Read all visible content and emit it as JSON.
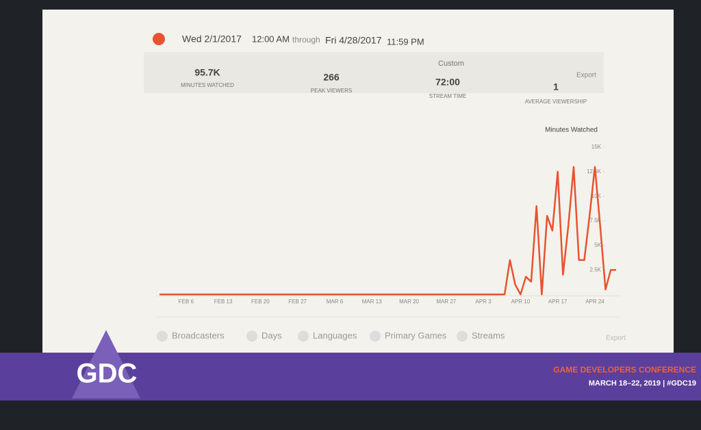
{
  "header": {
    "start_date": "Wed 2/1/2017",
    "start_time": "12:00 AM",
    "through": "through",
    "end_date": "Fri 4/28/2017",
    "end_time": "11:59 PM",
    "range": "Custom",
    "export": "Export"
  },
  "stats": [
    {
      "value": "95.7K",
      "label": "MINUTES WATCHED"
    },
    {
      "value": "266",
      "label": "PEAK VIEWERS"
    },
    {
      "value": "72:00",
      "label": "STREAM TIME"
    },
    {
      "value": "1",
      "label": "AVERAGE VIEWERSHIP"
    }
  ],
  "metric_select": "Minutes Watched",
  "chart_data": {
    "type": "line",
    "categories": [
      null,
      null,
      null,
      null,
      null,
      "FEB 6",
      null,
      null,
      null,
      null,
      null,
      null,
      "FEB 13",
      null,
      null,
      null,
      null,
      null,
      null,
      "FEB 20",
      null,
      null,
      null,
      null,
      null,
      null,
      "FEB 27",
      null,
      null,
      null,
      null,
      null,
      null,
      "MAR 6",
      null,
      null,
      null,
      null,
      null,
      null,
      "MAR 13",
      null,
      null,
      null,
      null,
      null,
      null,
      "MAR 20",
      null,
      null,
      null,
      null,
      null,
      null,
      "MAR 27",
      null,
      null,
      null,
      null,
      null,
      null,
      "APR 3",
      null,
      null,
      null,
      null,
      null,
      null,
      "APR 10",
      null,
      null,
      null,
      null,
      null,
      null,
      "APR 17",
      null,
      null,
      null,
      null,
      null,
      null,
      "APR 24",
      null,
      null,
      null,
      null
    ],
    "series": [
      {
        "name": "Minutes Watched",
        "color": "#e8522f",
        "values": [
          0,
          0,
          0,
          0,
          0,
          0,
          0,
          0,
          0,
          0,
          0,
          0,
          0,
          0,
          0,
          0,
          0,
          0,
          0,
          0,
          0,
          0,
          0,
          0,
          0,
          0,
          0,
          0,
          0,
          0,
          0,
          0,
          0,
          0,
          0,
          0,
          0,
          0,
          0,
          0,
          0,
          0,
          0,
          0,
          0,
          0,
          0,
          0,
          0,
          0,
          0,
          0,
          0,
          0,
          0,
          0,
          0,
          0,
          0,
          0,
          0,
          0,
          0,
          0,
          0,
          0,
          3500,
          1000,
          0,
          1800,
          1300,
          9000,
          0,
          8000,
          6500,
          12500,
          2000,
          7000,
          13000,
          3500,
          3500,
          8000,
          13000,
          7000,
          500,
          2500,
          2500
        ]
      }
    ],
    "ylim": [
      0,
      15000
    ],
    "yticks": [
      {
        "value": 2500,
        "label": "2.5K"
      },
      {
        "value": 5000,
        "label": "5K"
      },
      {
        "value": 7500,
        "label": "7.5K"
      },
      {
        "value": 10000,
        "label": "10K"
      },
      {
        "value": 12500,
        "label": "12.5K"
      },
      {
        "value": 15000,
        "label": "15K"
      }
    ],
    "grid": false
  },
  "tabs": [
    "Broadcasters",
    "Days",
    "Languages",
    "Primary Games",
    "Streams"
  ],
  "tabs_export": "Export",
  "footer": {
    "logo": "GDC",
    "conference": "GAME DEVELOPERS CONFERENCE",
    "dates": "MARCH 18–22, 2019 | #GDC19"
  }
}
